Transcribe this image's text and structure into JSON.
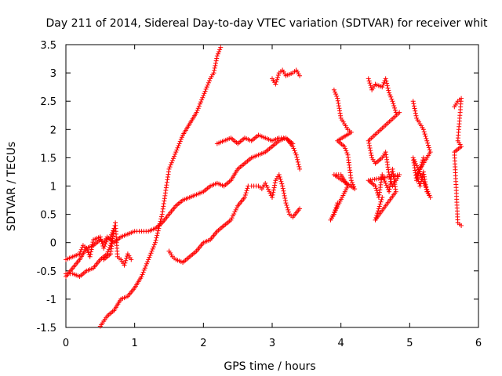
{
  "chart_data": {
    "type": "scatter",
    "title": "Day 211 of 2014, Sidereal Day-to-day VTEC variation (SDTVAR) for receiver whit",
    "xlabel": "GPS time / hours",
    "ylabel": "SDTVAR / TECUs",
    "xlim": [
      0,
      6
    ],
    "ylim": [
      -1.5,
      3.5
    ],
    "xticks": [
      0,
      1,
      2,
      3,
      4,
      5,
      6
    ],
    "xtick_labels": [
      "0",
      "1",
      "2",
      "3",
      "4",
      "5",
      "6"
    ],
    "yticks": [
      -1.5,
      -1,
      -0.5,
      0,
      0.5,
      1,
      1.5,
      2,
      2.5,
      3,
      3.5
    ],
    "ytick_labels": [
      "-1.5",
      "-1",
      "-0.5",
      "0",
      "0.5",
      "1",
      "1.5",
      "2",
      "2.5",
      "3",
      "3.5"
    ],
    "grid": false,
    "marker": "+",
    "color": "#ff0000",
    "series": [
      {
        "points": [
          [
            0.0,
            -0.3
          ],
          [
            0.1,
            -0.25
          ],
          [
            0.2,
            -0.2
          ],
          [
            0.25,
            -0.05
          ],
          [
            0.3,
            -0.1
          ],
          [
            0.4,
            -0.05
          ],
          [
            0.5,
            0.05
          ],
          [
            0.55,
            0.0
          ],
          [
            0.6,
            0.1
          ],
          [
            0.7,
            0.0
          ],
          [
            0.8,
            0.1
          ],
          [
            0.9,
            0.15
          ],
          [
            1.0,
            0.2
          ],
          [
            1.1,
            0.2
          ],
          [
            1.2,
            0.2
          ],
          [
            1.3,
            0.25
          ],
          [
            1.4,
            0.35
          ],
          [
            1.5,
            0.5
          ],
          [
            1.6,
            0.65
          ],
          [
            1.7,
            0.75
          ],
          [
            1.8,
            0.8
          ],
          [
            1.9,
            0.85
          ],
          [
            2.0,
            0.9
          ],
          [
            2.1,
            1.0
          ],
          [
            2.2,
            1.05
          ],
          [
            2.3,
            1.0
          ],
          [
            2.4,
            1.1
          ],
          [
            2.5,
            1.3
          ],
          [
            2.6,
            1.4
          ],
          [
            2.7,
            1.5
          ],
          [
            2.8,
            1.55
          ],
          [
            2.9,
            1.6
          ],
          [
            3.0,
            1.7
          ],
          [
            3.1,
            1.8
          ],
          [
            3.2,
            1.85
          ],
          [
            3.3,
            1.7
          ],
          [
            3.35,
            1.55
          ],
          [
            3.4,
            1.3
          ]
        ]
      },
      {
        "points": [
          [
            0.0,
            -0.55
          ],
          [
            0.1,
            -0.55
          ],
          [
            0.2,
            -0.6
          ],
          [
            0.3,
            -0.5
          ],
          [
            0.4,
            -0.45
          ],
          [
            0.5,
            -0.3
          ],
          [
            0.6,
            -0.2
          ],
          [
            0.65,
            -0.05
          ],
          [
            0.7,
            0.2
          ],
          [
            0.72,
            0.35
          ],
          [
            0.75,
            -0.25
          ],
          [
            0.8,
            -0.3
          ],
          [
            0.85,
            -0.4
          ],
          [
            0.9,
            -0.2
          ],
          [
            0.95,
            -0.3
          ]
        ]
      },
      {
        "points": [
          [
            0.0,
            -0.6
          ],
          [
            0.1,
            -0.45
          ],
          [
            0.2,
            -0.3
          ],
          [
            0.3,
            -0.1
          ],
          [
            0.35,
            -0.25
          ],
          [
            0.4,
            0.05
          ],
          [
            0.5,
            0.1
          ],
          [
            0.55,
            -0.1
          ],
          [
            0.6,
            0.05
          ],
          [
            0.65,
            0.1
          ],
          [
            0.7,
            0.25
          ],
          [
            0.65,
            -0.2
          ],
          [
            0.55,
            -0.3
          ]
        ]
      },
      {
        "points": [
          [
            0.5,
            -1.48
          ],
          [
            0.6,
            -1.3
          ],
          [
            0.7,
            -1.2
          ],
          [
            0.8,
            -1.0
          ],
          [
            0.9,
            -0.95
          ],
          [
            1.0,
            -0.8
          ],
          [
            1.1,
            -0.6
          ],
          [
            1.2,
            -0.3
          ],
          [
            1.3,
            0.0
          ],
          [
            1.4,
            0.5
          ],
          [
            1.5,
            1.3
          ],
          [
            1.6,
            1.6
          ],
          [
            1.7,
            1.9
          ],
          [
            1.8,
            2.1
          ],
          [
            1.9,
            2.3
          ],
          [
            2.0,
            2.6
          ],
          [
            2.1,
            2.9
          ],
          [
            2.15,
            3.0
          ],
          [
            2.2,
            3.3
          ],
          [
            2.25,
            3.45
          ]
        ]
      },
      {
        "points": [
          [
            1.5,
            -0.15
          ],
          [
            1.55,
            -0.25
          ],
          [
            1.6,
            -0.3
          ],
          [
            1.7,
            -0.35
          ],
          [
            1.8,
            -0.25
          ],
          [
            1.9,
            -0.15
          ],
          [
            2.0,
            0.0
          ],
          [
            2.1,
            0.05
          ],
          [
            2.2,
            0.2
          ],
          [
            2.3,
            0.3
          ],
          [
            2.4,
            0.4
          ],
          [
            2.5,
            0.65
          ],
          [
            2.6,
            0.8
          ],
          [
            2.65,
            1.0
          ],
          [
            2.7,
            1.0
          ],
          [
            2.8,
            1.0
          ],
          [
            2.85,
            0.95
          ],
          [
            2.9,
            1.05
          ],
          [
            3.0,
            0.8
          ],
          [
            3.05,
            1.1
          ],
          [
            3.1,
            1.2
          ],
          [
            3.15,
            1.0
          ],
          [
            3.2,
            0.7
          ],
          [
            3.25,
            0.5
          ],
          [
            3.3,
            0.45
          ],
          [
            3.4,
            0.6
          ]
        ]
      },
      {
        "points": [
          [
            2.2,
            1.75
          ],
          [
            2.3,
            1.8
          ],
          [
            2.4,
            1.85
          ],
          [
            2.5,
            1.75
          ],
          [
            2.6,
            1.85
          ],
          [
            2.7,
            1.8
          ],
          [
            2.8,
            1.9
          ],
          [
            2.9,
            1.85
          ],
          [
            3.0,
            1.8
          ],
          [
            3.1,
            1.85
          ],
          [
            3.2,
            1.85
          ],
          [
            3.3,
            1.75
          ]
        ]
      },
      {
        "points": [
          [
            3.0,
            2.9
          ],
          [
            3.05,
            2.8
          ],
          [
            3.1,
            3.0
          ],
          [
            3.15,
            3.05
          ],
          [
            3.2,
            2.95
          ],
          [
            3.3,
            3.0
          ],
          [
            3.35,
            3.05
          ],
          [
            3.4,
            2.95
          ]
        ]
      },
      {
        "points": [
          [
            3.9,
            2.7
          ],
          [
            3.95,
            2.55
          ],
          [
            4.0,
            2.2
          ],
          [
            4.05,
            2.1
          ],
          [
            4.1,
            2.0
          ],
          [
            4.15,
            1.95
          ],
          [
            3.95,
            1.8
          ],
          [
            4.05,
            1.7
          ],
          [
            4.1,
            1.55
          ],
          [
            4.15,
            1.1
          ],
          [
            4.2,
            0.95
          ],
          [
            3.9,
            1.2
          ],
          [
            4.0,
            1.2
          ],
          [
            4.1,
            1.0
          ],
          [
            3.85,
            0.4
          ],
          [
            3.9,
            0.5
          ],
          [
            3.95,
            0.7
          ]
        ]
      },
      {
        "points": [
          [
            4.4,
            2.9
          ],
          [
            4.45,
            2.7
          ],
          [
            4.5,
            2.8
          ],
          [
            4.6,
            2.75
          ],
          [
            4.65,
            2.9
          ],
          [
            4.7,
            2.65
          ],
          [
            4.75,
            2.5
          ],
          [
            4.8,
            2.3
          ],
          [
            4.85,
            2.3
          ],
          [
            4.4,
            1.8
          ],
          [
            4.45,
            1.5
          ],
          [
            4.5,
            1.4
          ],
          [
            4.6,
            1.5
          ],
          [
            4.65,
            1.6
          ],
          [
            4.7,
            1.2
          ],
          [
            4.75,
            1.0
          ],
          [
            4.8,
            1.1
          ],
          [
            4.85,
            1.2
          ],
          [
            4.4,
            1.1
          ],
          [
            4.5,
            1.0
          ],
          [
            4.55,
            0.8
          ],
          [
            4.6,
            1.2
          ],
          [
            4.7,
            0.9
          ],
          [
            4.75,
            1.3
          ],
          [
            4.8,
            0.9
          ],
          [
            4.5,
            0.4
          ],
          [
            4.55,
            0.6
          ],
          [
            4.6,
            0.8
          ]
        ]
      },
      {
        "points": [
          [
            5.05,
            2.5
          ],
          [
            5.1,
            2.2
          ],
          [
            5.15,
            2.1
          ],
          [
            5.2,
            2.0
          ],
          [
            5.25,
            1.8
          ],
          [
            5.3,
            1.6
          ],
          [
            5.1,
            1.2
          ],
          [
            5.15,
            1.0
          ],
          [
            5.2,
            1.25
          ],
          [
            5.25,
            0.9
          ],
          [
            5.3,
            0.8
          ],
          [
            5.05,
            1.5
          ],
          [
            5.1,
            1.1
          ],
          [
            5.2,
            1.5
          ]
        ]
      },
      {
        "points": [
          [
            5.65,
            2.4
          ],
          [
            5.7,
            2.5
          ],
          [
            5.75,
            2.55
          ],
          [
            5.7,
            1.8
          ],
          [
            5.75,
            1.7
          ],
          [
            5.65,
            1.6
          ],
          [
            5.7,
            0.35
          ],
          [
            5.75,
            0.3
          ]
        ]
      }
    ]
  }
}
